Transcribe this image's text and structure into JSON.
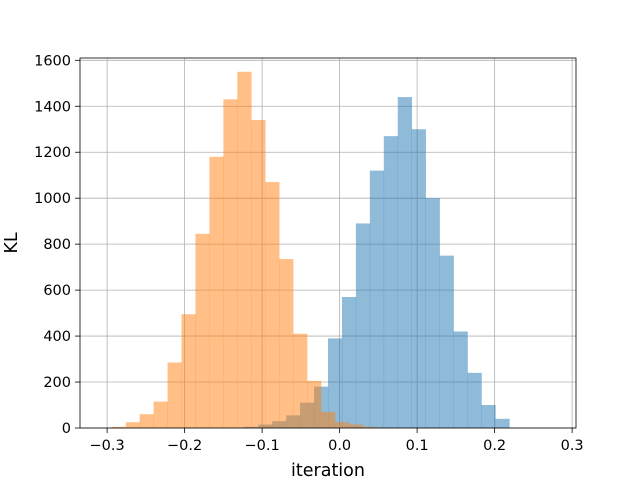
{
  "chart_data": {
    "type": "bar",
    "title": "",
    "xlabel": "iteration",
    "ylabel": "KL",
    "xlim": [
      -0.335,
      0.305
    ],
    "ylim": [
      0,
      1610
    ],
    "grid": true,
    "bin_width": 0.018,
    "xticks": [
      -0.3,
      -0.2,
      -0.1,
      0.0,
      0.1,
      0.2,
      0.3
    ],
    "xtick_labels": [
      "−0.3",
      "−0.2",
      "−0.1",
      "0.0",
      "0.1",
      "0.2",
      "0.3"
    ],
    "yticks": [
      0,
      200,
      400,
      600,
      800,
      1000,
      1200,
      1400,
      1600
    ],
    "ytick_labels": [
      "0",
      "200",
      "400",
      "600",
      "800",
      "1000",
      "1200",
      "1400",
      "1600"
    ],
    "series": [
      {
        "color": "#1f77b4",
        "opacity": 0.5,
        "bin_edges": [
          -0.123,
          -0.105,
          -0.087,
          -0.069,
          -0.051,
          -0.033,
          -0.015,
          0.003,
          0.021,
          0.039,
          0.057,
          0.075,
          0.093,
          0.111,
          0.129,
          0.147,
          0.165,
          0.183,
          0.201,
          0.219
        ],
        "counts": [
          5,
          15,
          30,
          55,
          110,
          180,
          390,
          570,
          890,
          1120,
          1270,
          1440,
          1300,
          1000,
          750,
          420,
          240,
          100,
          40
        ]
      },
      {
        "color": "#ff7f0e",
        "opacity": 0.5,
        "bin_edges": [
          -0.294,
          -0.276,
          -0.258,
          -0.24,
          -0.222,
          -0.204,
          -0.186,
          -0.168,
          -0.15,
          -0.132,
          -0.114,
          -0.096,
          -0.078,
          -0.06,
          -0.042,
          -0.024,
          -0.006,
          0.012,
          0.03,
          0.048
        ],
        "counts": [
          5,
          25,
          60,
          115,
          285,
          495,
          845,
          1180,
          1430,
          1550,
          1340,
          1070,
          735,
          410,
          205,
          70,
          25,
          15,
          5
        ]
      }
    ]
  }
}
